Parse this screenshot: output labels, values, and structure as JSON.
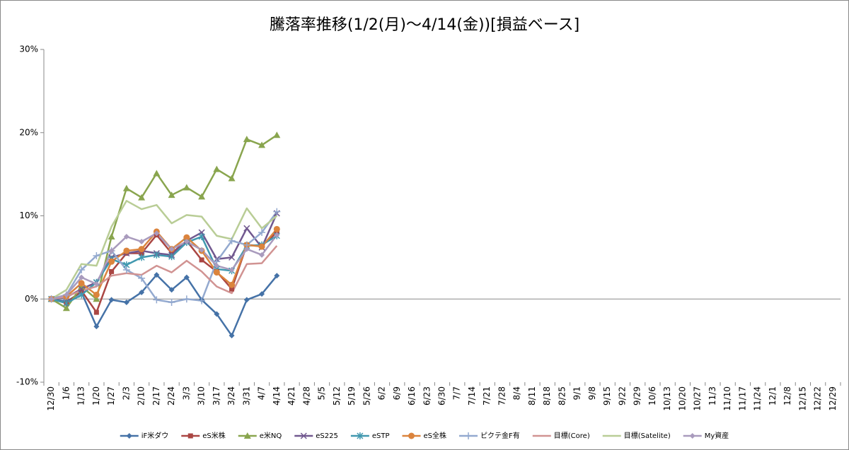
{
  "chart_data": {
    "type": "line",
    "title": "騰落率推移(1/2(月)～4/14(金))[損益ベース]",
    "categories": [
      "12/30",
      "1/6",
      "1/13",
      "1/20",
      "1/27",
      "2/3",
      "2/10",
      "2/17",
      "2/24",
      "3/3",
      "3/10",
      "3/17",
      "3/24",
      "3/31",
      "4/7",
      "4/14",
      "4/21",
      "4/28",
      "5/5",
      "5/12",
      "5/19",
      "5/26",
      "6/2",
      "6/9",
      "6/16",
      "6/23",
      "6/30",
      "7/7",
      "7/14",
      "7/21",
      "7/28",
      "8/4",
      "8/11",
      "8/18",
      "8/25",
      "9/1",
      "9/8",
      "9/15",
      "9/22",
      "9/29",
      "10/6",
      "10/13",
      "10/20",
      "10/27",
      "11/3",
      "11/10",
      "11/17",
      "11/24",
      "12/1",
      "12/8",
      "12/15",
      "12/22",
      "12/29"
    ],
    "ylim": [
      -10,
      30
    ],
    "yticks": [
      {
        "value": -10,
        "label": "-10%"
      },
      {
        "value": 0,
        "label": "0%"
      },
      {
        "value": 10,
        "label": "10%"
      },
      {
        "value": 20,
        "label": "20%"
      },
      {
        "value": 30,
        "label": "30%"
      }
    ],
    "grid": false,
    "legend": "bottom",
    "series": [
      {
        "name": "iF米ダウ",
        "color": "#4572a7",
        "marker": "diamond",
        "values": [
          0,
          -0.3,
          0.8,
          -3.3,
          -0.1,
          -0.4,
          0.8,
          2.9,
          1.1,
          2.6,
          -0.1,
          -1.8,
          -4.4,
          -0.1,
          0.6,
          2.8,
          null,
          null,
          null,
          null,
          null,
          null,
          null,
          null,
          null,
          null,
          null,
          null,
          null,
          null,
          null,
          null,
          null,
          null,
          null,
          null,
          null,
          null,
          null,
          null,
          null,
          null,
          null,
          null,
          null,
          null,
          null,
          null,
          null,
          null,
          null,
          null,
          null
        ]
      },
      {
        "name": "eS米株",
        "color": "#aa4643",
        "marker": "square",
        "values": [
          0,
          -0.5,
          1.0,
          -1.6,
          3.3,
          5.5,
          5.5,
          7.7,
          5.5,
          7.0,
          4.7,
          3.3,
          1.2,
          6.5,
          6.4,
          8.0,
          null,
          null,
          null,
          null,
          null,
          null,
          null,
          null,
          null,
          null,
          null,
          null,
          null,
          null,
          null,
          null,
          null,
          null,
          null,
          null,
          null,
          null,
          null,
          null,
          null,
          null,
          null,
          null,
          null,
          null,
          null,
          null,
          null,
          null,
          null,
          null,
          null
        ]
      },
      {
        "name": "e米NQ",
        "color": "#89a54e",
        "marker": "triangle",
        "values": [
          0,
          -1.1,
          1.5,
          0.0,
          7.5,
          13.3,
          12.2,
          15.1,
          12.5,
          13.4,
          12.3,
          15.6,
          14.5,
          19.2,
          18.5,
          19.7,
          null,
          null,
          null,
          null,
          null,
          null,
          null,
          null,
          null,
          null,
          null,
          null,
          null,
          null,
          null,
          null,
          null,
          null,
          null,
          null,
          null,
          null,
          null,
          null,
          null,
          null,
          null,
          null,
          null,
          null,
          null,
          null,
          null,
          null,
          null,
          null,
          null
        ]
      },
      {
        "name": "eS225",
        "color": "#71588f",
        "marker": "x",
        "values": [
          0,
          0.2,
          1.2,
          2.0,
          5.0,
          5.5,
          5.8,
          5.5,
          5.3,
          7.0,
          8.0,
          4.8,
          5.0,
          8.5,
          6.2,
          10.3,
          null,
          null,
          null,
          null,
          null,
          null,
          null,
          null,
          null,
          null,
          null,
          null,
          null,
          null,
          null,
          null,
          null,
          null,
          null,
          null,
          null,
          null,
          null,
          null,
          null,
          null,
          null,
          null,
          null,
          null,
          null,
          null,
          null,
          null,
          null,
          null,
          null
        ]
      },
      {
        "name": "eSTP",
        "color": "#4198af",
        "marker": "star",
        "values": [
          0,
          -0.5,
          0.5,
          2.0,
          4.8,
          4.1,
          5.0,
          5.3,
          5.1,
          6.8,
          7.5,
          3.6,
          3.4,
          6.4,
          6.5,
          7.6,
          null,
          null,
          null,
          null,
          null,
          null,
          null,
          null,
          null,
          null,
          null,
          null,
          null,
          null,
          null,
          null,
          null,
          null,
          null,
          null,
          null,
          null,
          null,
          null,
          null,
          null,
          null,
          null,
          null,
          null,
          null,
          null,
          null,
          null,
          null,
          null,
          null
        ]
      },
      {
        "name": "eS全株",
        "color": "#db843d",
        "marker": "circle",
        "values": [
          0,
          0.3,
          1.9,
          0.5,
          4.5,
          5.8,
          6.0,
          8.1,
          6.0,
          7.4,
          5.8,
          3.2,
          1.7,
          6.5,
          6.3,
          8.4,
          null,
          null,
          null,
          null,
          null,
          null,
          null,
          null,
          null,
          null,
          null,
          null,
          null,
          null,
          null,
          null,
          null,
          null,
          null,
          null,
          null,
          null,
          null,
          null,
          null,
          null,
          null,
          null,
          null,
          null,
          null,
          null,
          null,
          null,
          null,
          null,
          null
        ]
      },
      {
        "name": "ピクテ金F有",
        "color": "#93a9cf",
        "marker": "plus",
        "values": [
          0,
          0.5,
          3.5,
          5.2,
          5.8,
          3.5,
          2.5,
          -0.1,
          -0.4,
          0.0,
          -0.2,
          4.5,
          7.0,
          6.5,
          8.0,
          10.5,
          null,
          null,
          null,
          null,
          null,
          null,
          null,
          null,
          null,
          null,
          null,
          null,
          null,
          null,
          null,
          null,
          null,
          null,
          null,
          null,
          null,
          null,
          null,
          null,
          null,
          null,
          null,
          null,
          null,
          null,
          null,
          null,
          null,
          null,
          null,
          null,
          null
        ]
      },
      {
        "name": "目標(Core)",
        "color": "#d19392",
        "marker": "none",
        "values": [
          0,
          0.3,
          1.0,
          1.5,
          2.8,
          3.1,
          2.9,
          4.0,
          3.2,
          4.6,
          3.3,
          1.5,
          0.7,
          4.2,
          4.3,
          6.4,
          null,
          null,
          null,
          null,
          null,
          null,
          null,
          null,
          null,
          null,
          null,
          null,
          null,
          null,
          null,
          null,
          null,
          null,
          null,
          null,
          null,
          null,
          null,
          null,
          null,
          null,
          null,
          null,
          null,
          null,
          null,
          null,
          null,
          null,
          null,
          null,
          null
        ]
      },
      {
        "name": "目標(Satelite)",
        "color": "#b9cd96",
        "marker": "none",
        "values": [
          0,
          1.1,
          4.2,
          4.0,
          8.7,
          11.8,
          10.8,
          11.3,
          9.1,
          10.1,
          9.9,
          7.6,
          7.2,
          10.9,
          8.5,
          10.0,
          null,
          null,
          null,
          null,
          null,
          null,
          null,
          null,
          null,
          null,
          null,
          null,
          null,
          null,
          null,
          null,
          null,
          null,
          null,
          null,
          null,
          null,
          null,
          null,
          null,
          null,
          null,
          null,
          null,
          null,
          null,
          null,
          null,
          null,
          null,
          null,
          null
        ]
      },
      {
        "name": "My資産",
        "color": "#a99bbd",
        "marker": "diamond",
        "values": [
          0,
          0.5,
          2.6,
          1.8,
          5.8,
          7.5,
          6.9,
          7.9,
          6.0,
          6.9,
          5.9,
          4.0,
          3.5,
          6.0,
          5.3,
          7.7,
          null,
          null,
          null,
          null,
          null,
          null,
          null,
          null,
          null,
          null,
          null,
          null,
          null,
          null,
          null,
          null,
          null,
          null,
          null,
          null,
          null,
          null,
          null,
          null,
          null,
          null,
          null,
          null,
          null,
          null,
          null,
          null,
          null,
          null,
          null,
          null,
          null
        ]
      }
    ]
  }
}
